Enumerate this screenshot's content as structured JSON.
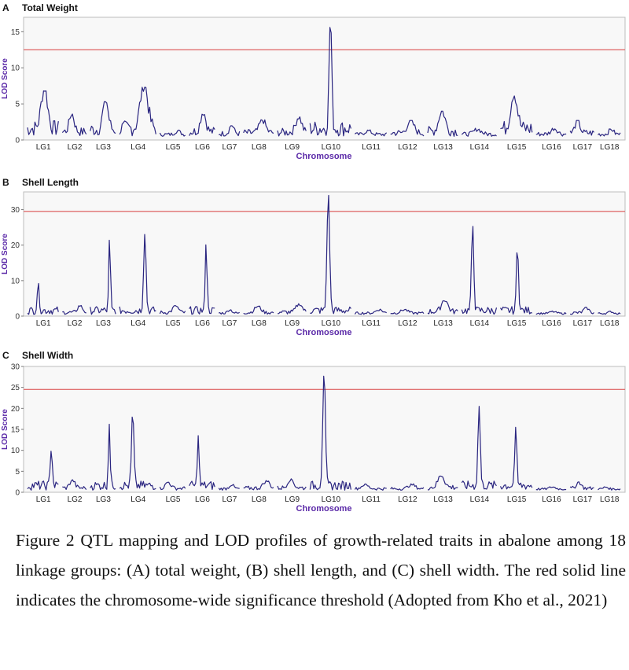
{
  "caption": "Figure 2 QTL mapping and LOD profiles of growth-related traits in abalone among 18 linkage groups: (A) total weight, (B) shell length, and (C) shell width. The red solid line indicates the chromosome-wide significance threshold (Adopted from Kho et al., 2021)",
  "colors": {
    "line": "#2a2580",
    "threshold": "#e07070",
    "axis_label": "#5b2aa8",
    "plot_bg": "#f8f8f8"
  },
  "chart_data": [
    {
      "type": "line",
      "panel": "A",
      "title": "Total Weight",
      "xlabel": "Chromosome",
      "ylabel": "LOD Score",
      "ylim": [
        0,
        17
      ],
      "yticks": [
        0,
        5,
        10,
        15
      ],
      "threshold": 12.5,
      "categories": [
        "LG1",
        "LG2",
        "LG3",
        "LG4",
        "LG5",
        "LG6",
        "LG7",
        "LG8",
        "LG9",
        "LG10",
        "LG11",
        "LG12",
        "LG13",
        "LG14",
        "LG15",
        "LG16",
        "LG17",
        "LG18"
      ],
      "peaks": [
        6.8,
        3.6,
        5.3,
        7.3,
        1.5,
        3.8,
        2.2,
        2.8,
        3.2,
        16.3,
        1.5,
        2.7,
        4.0,
        1.7,
        6.1,
        1.8,
        2.7,
        1.7
      ]
    },
    {
      "type": "line",
      "panel": "B",
      "title": "Shell Length",
      "xlabel": "Chromosome",
      "ylabel": "LOD Score",
      "ylim": [
        0,
        35
      ],
      "yticks": [
        0,
        10,
        20,
        30
      ],
      "threshold": 29.5,
      "categories": [
        "LG1",
        "LG2",
        "LG3",
        "LG4",
        "LG5",
        "LG6",
        "LG7",
        "LG8",
        "LG9",
        "LG10",
        "LG11",
        "LG12",
        "LG13",
        "LG14",
        "LG15",
        "LG16",
        "LG17",
        "LG18"
      ],
      "peaks": [
        9.2,
        3.0,
        21.5,
        23.5,
        3.0,
        22.0,
        2.0,
        2.8,
        3.5,
        34.0,
        2.0,
        2.0,
        4.5,
        25.5,
        20.0,
        1.5,
        2.5,
        1.5
      ]
    },
    {
      "type": "line",
      "panel": "C",
      "title": "Shell Width",
      "xlabel": "Chromosome",
      "ylabel": "LOD Score",
      "ylim": [
        0,
        30
      ],
      "yticks": [
        0,
        5,
        10,
        15,
        20,
        25,
        30
      ],
      "threshold": 24.5,
      "categories": [
        "LG1",
        "LG2",
        "LG3",
        "LG4",
        "LG5",
        "LG6",
        "LG7",
        "LG8",
        "LG9",
        "LG10",
        "LG11",
        "LG12",
        "LG13",
        "LG14",
        "LG15",
        "LG16",
        "LG17",
        "LG18"
      ],
      "peaks": [
        10.5,
        3.0,
        16.5,
        18.5,
        2.5,
        14.0,
        2.0,
        2.8,
        3.2,
        28.5,
        2.0,
        2.0,
        4.0,
        20.5,
        15.5,
        1.5,
        2.5,
        1.5
      ]
    }
  ]
}
